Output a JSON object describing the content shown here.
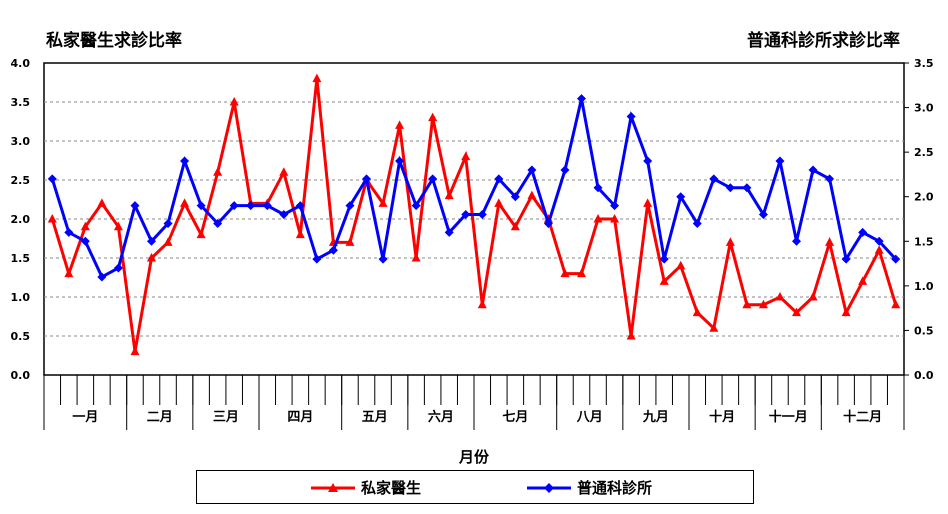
{
  "chart_data": {
    "type": "line",
    "left_axis_title": "私家醫生求診比率",
    "right_axis_title": "普通科診所求診比率",
    "xlabel": "月份",
    "y_left": {
      "min": 0,
      "max": 4.0,
      "ticks": [
        "0.0",
        "0.5",
        "1.0",
        "1.5",
        "2.0",
        "2.5",
        "3.0",
        "3.5",
        "4.0"
      ]
    },
    "y_right": {
      "min": 0,
      "max": 3.5,
      "ticks": [
        "0.0",
        "0.5",
        "1.0",
        "1.5",
        "2.0",
        "2.5",
        "3.0",
        "3.5"
      ]
    },
    "months": [
      "一月",
      "二月",
      "三月",
      "四月",
      "五月",
      "六月",
      "七月",
      "八月",
      "九月",
      "十月",
      "十一月",
      "十二月"
    ],
    "weeks_per_month": [
      5,
      4,
      4,
      5,
      4,
      4,
      5,
      4,
      4,
      4,
      4,
      5
    ],
    "grid": "horizontal dashed",
    "legend_position": "bottom",
    "series": [
      {
        "name": "私家醫生",
        "axis": "left",
        "color": "#ff0000",
        "marker": "triangle",
        "values": [
          2.0,
          1.3,
          1.9,
          2.2,
          1.9,
          0.3,
          1.5,
          1.7,
          2.2,
          1.8,
          2.6,
          3.5,
          2.2,
          2.2,
          2.6,
          1.8,
          3.8,
          1.7,
          1.7,
          2.5,
          2.2,
          3.2,
          1.5,
          3.3,
          2.3,
          2.8,
          0.9,
          2.2,
          1.9,
          2.3,
          2.0,
          1.3,
          1.3,
          2.0,
          2.0,
          0.5,
          2.2,
          1.2,
          1.4,
          0.8,
          0.6,
          1.7,
          0.9,
          0.9,
          1.0,
          0.8,
          1.0,
          1.7,
          0.8,
          1.2,
          1.6,
          0.9
        ]
      },
      {
        "name": "普通科診所",
        "axis": "right",
        "color": "#0000ff",
        "marker": "diamond",
        "values": [
          2.2,
          1.6,
          1.5,
          1.1,
          1.2,
          1.9,
          1.5,
          1.7,
          2.4,
          1.9,
          1.7,
          1.9,
          1.9,
          1.9,
          1.8,
          1.9,
          1.3,
          1.4,
          1.9,
          2.2,
          1.3,
          2.4,
          1.9,
          2.2,
          1.6,
          1.8,
          1.8,
          2.2,
          2.0,
          2.3,
          1.7,
          2.3,
          3.1,
          2.1,
          1.9,
          2.9,
          2.4,
          1.3,
          2.0,
          1.7,
          2.2,
          2.1,
          2.1,
          1.8,
          2.4,
          1.5,
          2.3,
          2.2,
          1.3,
          1.6,
          1.5,
          1.3
        ]
      }
    ]
  }
}
